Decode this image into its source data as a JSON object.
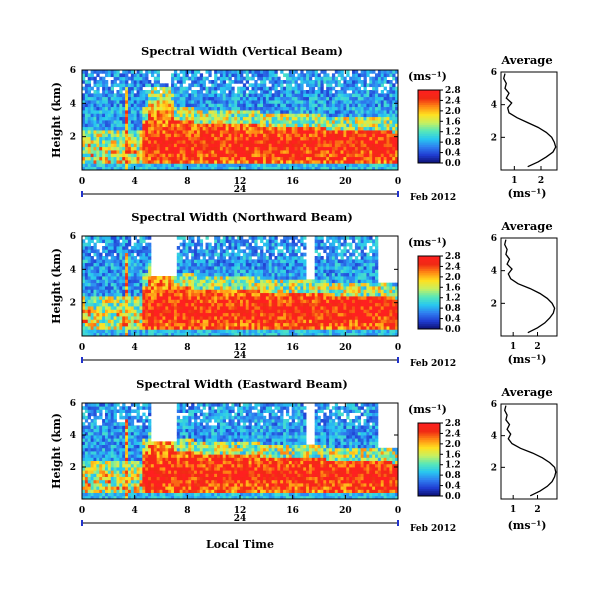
{
  "figure": {
    "xlabel": "Local Time",
    "date_label": "Feb 2012",
    "day_label": "24",
    "x_ticks": [
      "0",
      "4",
      "8",
      "12",
      "16",
      "20",
      "0"
    ],
    "unit_label": "(ms⁻¹)",
    "colormap": [
      "#0c0f6e",
      "#1f3bd0",
      "#2f7ef0",
      "#28c8f0",
      "#58e8b8",
      "#c8f060",
      "#ffe020",
      "#ff8a14",
      "#f02a14",
      "#ff2020"
    ]
  },
  "chart_data": [
    {
      "type": "heatmap",
      "title": "Spectral Width (Vertical Beam)",
      "xlabel": "",
      "ylabel": "Height (km)",
      "xlim": [
        0,
        24
      ],
      "ylim": [
        0,
        6
      ],
      "y_ticks": [
        "2",
        "4",
        "6"
      ],
      "colorbar": {
        "ticks": [
          "0.0",
          "0.4",
          "0.8",
          "1.2",
          "1.6",
          "2.0",
          "2.4",
          "2.8"
        ],
        "range": [
          0,
          2.8
        ]
      },
      "peak_value": 2.8,
      "average_profile": {
        "title": "Average",
        "xlabel": "(ms⁻¹)",
        "x_ticks": [
          "1",
          "2"
        ],
        "xlim": [
          0.5,
          2.6
        ],
        "ylim": [
          0,
          6
        ],
        "y_ticks": [
          "2",
          "4",
          "6"
        ],
        "height": [
          0.2,
          0.5,
          0.8,
          1.1,
          1.4,
          1.7,
          2.0,
          2.3,
          2.6,
          2.9,
          3.2,
          3.5,
          3.8,
          4.1,
          4.4,
          4.7,
          5.0,
          5.3,
          5.6,
          5.9
        ],
        "width": [
          1.5,
          1.9,
          2.2,
          2.45,
          2.55,
          2.5,
          2.4,
          2.2,
          1.9,
          1.5,
          1.1,
          0.8,
          0.75,
          0.9,
          0.7,
          0.8,
          0.65,
          0.7,
          0.6,
          0.65
        ]
      }
    },
    {
      "type": "heatmap",
      "title": "Spectral Width (Northward Beam)",
      "xlabel": "",
      "ylabel": "Height (km)",
      "xlim": [
        0,
        24
      ],
      "ylim": [
        0,
        6
      ],
      "y_ticks": [
        "2",
        "4",
        "6"
      ],
      "colorbar": {
        "ticks": [
          "0.0",
          "0.4",
          "0.8",
          "1.2",
          "1.6",
          "2.0",
          "2.4",
          "2.8"
        ],
        "range": [
          0,
          2.8
        ]
      },
      "peak_value": 3.0,
      "average_profile": {
        "title": "Average",
        "xlabel": "(ms⁻¹)",
        "x_ticks": [
          "1",
          "2"
        ],
        "xlim": [
          0.5,
          2.8
        ],
        "ylim": [
          0,
          6
        ],
        "y_ticks": [
          "2",
          "4",
          "6"
        ],
        "height": [
          0.2,
          0.5,
          0.8,
          1.1,
          1.4,
          1.7,
          2.0,
          2.3,
          2.6,
          2.9,
          3.2,
          3.5,
          3.8,
          4.1,
          4.4,
          4.7,
          5.0,
          5.3,
          5.6,
          5.9
        ],
        "width": [
          1.6,
          2.0,
          2.3,
          2.5,
          2.65,
          2.7,
          2.6,
          2.4,
          2.1,
          1.7,
          1.2,
          0.9,
          0.8,
          0.95,
          0.75,
          0.85,
          0.7,
          0.75,
          0.65,
          0.7
        ]
      }
    },
    {
      "type": "heatmap",
      "title": "Spectral Width (Eastward Beam)",
      "xlabel": "Local Time",
      "ylabel": "Height (km)",
      "xlim": [
        0,
        24
      ],
      "ylim": [
        0,
        6
      ],
      "y_ticks": [
        "2",
        "4",
        "6"
      ],
      "colorbar": {
        "ticks": [
          "0.0",
          "0.4",
          "0.8",
          "1.2",
          "1.6",
          "2.0",
          "2.4",
          "2.8"
        ],
        "range": [
          0,
          2.8
        ]
      },
      "peak_value": 3.0,
      "average_profile": {
        "title": "Average",
        "xlabel": "(ms⁻¹)",
        "x_ticks": [
          "1",
          "2"
        ],
        "xlim": [
          0.5,
          2.8
        ],
        "ylim": [
          0,
          6
        ],
        "y_ticks": [
          "2",
          "4",
          "6"
        ],
        "height": [
          0.2,
          0.5,
          0.8,
          1.1,
          1.4,
          1.7,
          2.0,
          2.3,
          2.6,
          2.9,
          3.2,
          3.5,
          3.8,
          4.1,
          4.4,
          4.7,
          5.0,
          5.3,
          5.6,
          5.9
        ],
        "width": [
          1.7,
          2.1,
          2.4,
          2.6,
          2.7,
          2.75,
          2.7,
          2.5,
          2.2,
          1.8,
          1.3,
          0.95,
          0.8,
          0.9,
          0.75,
          0.85,
          0.7,
          0.75,
          0.65,
          0.7
        ]
      }
    }
  ]
}
